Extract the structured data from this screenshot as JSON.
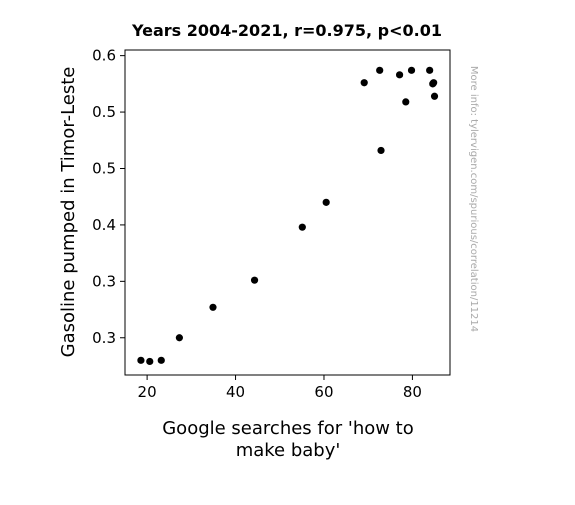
{
  "chart_data": {
    "type": "scatter",
    "title": "Years 2004-2021, r=0.975, p<0.01",
    "xlabel_lines": [
      "Google searches for 'how to",
      "make baby'"
    ],
    "ylabel": "Gasoline pumped in Timor-Leste",
    "x_ticks": [
      {
        "value": 20,
        "label": "20"
      },
      {
        "value": 40,
        "label": "40"
      },
      {
        "value": 60,
        "label": "60"
      },
      {
        "value": 80,
        "label": "80"
      }
    ],
    "y_ticks": [
      {
        "value": 0.3,
        "label": "0.3"
      },
      {
        "value": 0.35,
        "label": "0.3"
      },
      {
        "value": 0.4,
        "label": "0.4"
      },
      {
        "value": 0.45,
        "label": "0.5"
      },
      {
        "value": 0.5,
        "label": "0.5"
      },
      {
        "value": 0.55,
        "label": "0.6"
      }
    ],
    "xlim": [
      15,
      88.5
    ],
    "ylim": [
      0.267,
      0.555
    ],
    "grid": false,
    "marker_color": "#000000",
    "points": [
      {
        "x": 18.6,
        "y": 0.28
      },
      {
        "x": 20.6,
        "y": 0.279
      },
      {
        "x": 23.2,
        "y": 0.28
      },
      {
        "x": 27.3,
        "y": 0.3
      },
      {
        "x": 34.9,
        "y": 0.327
      },
      {
        "x": 44.3,
        "y": 0.351
      },
      {
        "x": 55.1,
        "y": 0.398
      },
      {
        "x": 60.5,
        "y": 0.42
      },
      {
        "x": 69.1,
        "y": 0.526
      },
      {
        "x": 72.9,
        "y": 0.466
      },
      {
        "x": 72.6,
        "y": 0.537
      },
      {
        "x": 77.1,
        "y": 0.533
      },
      {
        "x": 78.5,
        "y": 0.509
      },
      {
        "x": 79.8,
        "y": 0.537
      },
      {
        "x": 83.9,
        "y": 0.537
      },
      {
        "x": 84.6,
        "y": 0.525
      },
      {
        "x": 84.8,
        "y": 0.526
      },
      {
        "x": 85.0,
        "y": 0.514
      }
    ]
  },
  "watermark": "More info: tylervigen.com/spurious/correlation/11214"
}
